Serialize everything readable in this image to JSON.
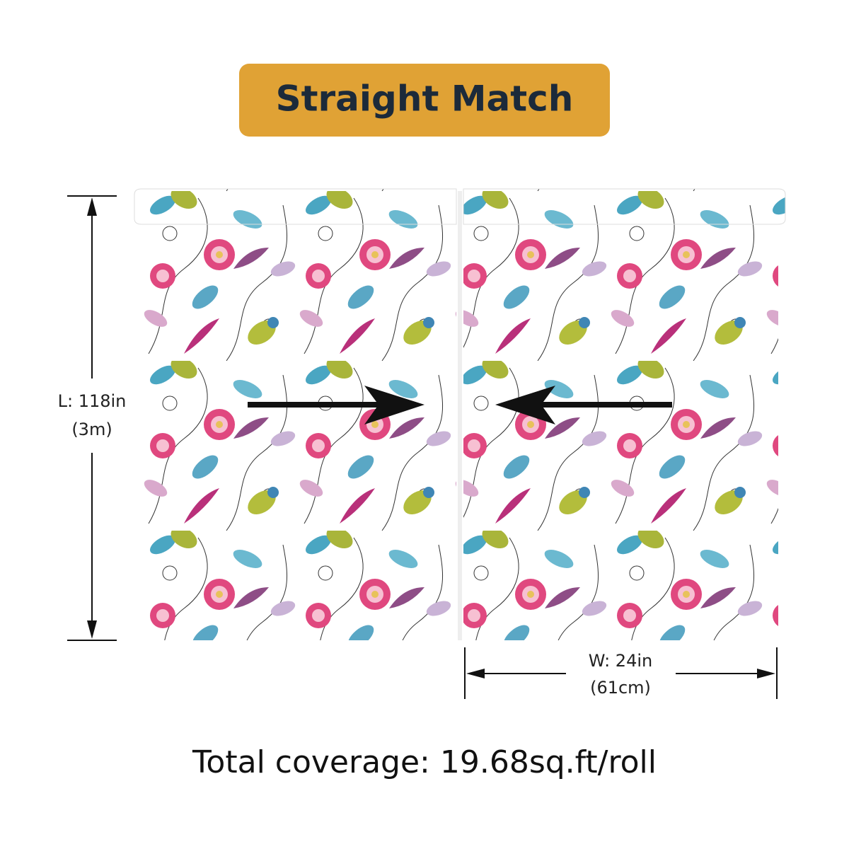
{
  "title": "Straight Match",
  "length": {
    "label": "L: 118in",
    "metric": "(3m)"
  },
  "width": {
    "label": "W: 24in",
    "metric": "(61cm)"
  },
  "coverage": "Total coverage: 19.68sq.ft/roll"
}
